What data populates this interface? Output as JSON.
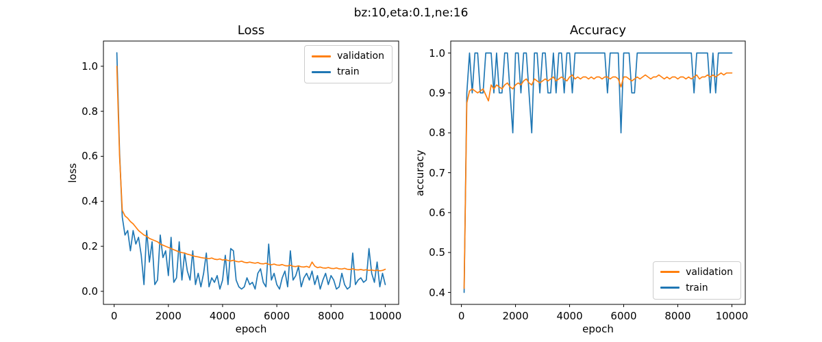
{
  "figure": {
    "suptitle": "bz:10,eta:0.1,ne:16",
    "background": "#ffffff",
    "text_color": "#000000",
    "spine_color": "#000000"
  },
  "colors": {
    "validation": "#ff7f0e",
    "train": "#1f77b4"
  },
  "chart_data": [
    {
      "id": "loss",
      "type": "line",
      "title": "Loss",
      "xlabel": "epoch",
      "ylabel": "loss",
      "grid": false,
      "xlim": [
        -395,
        10495
      ],
      "ylim": [
        -0.058,
        1.112
      ],
      "xticks": [
        0,
        2000,
        4000,
        6000,
        8000,
        10000
      ],
      "xtick_labels": [
        "0",
        "2000",
        "4000",
        "6000",
        "8000",
        "10000"
      ],
      "yticks": [
        0.0,
        0.2,
        0.4,
        0.6,
        0.8,
        1.0
      ],
      "ytick_labels": [
        "0.0",
        "0.2",
        "0.4",
        "0.6",
        "0.8",
        "1.0"
      ],
      "legend": {
        "position": "upper-right",
        "entries": [
          "validation",
          "train"
        ]
      },
      "x": [
        100,
        200,
        300,
        400,
        500,
        600,
        700,
        800,
        900,
        1000,
        1100,
        1200,
        1300,
        1400,
        1500,
        1600,
        1700,
        1800,
        1900,
        2000,
        2100,
        2200,
        2300,
        2400,
        2500,
        2600,
        2700,
        2800,
        2900,
        3000,
        3100,
        3200,
        3300,
        3400,
        3500,
        3600,
        3700,
        3800,
        3900,
        4000,
        4100,
        4200,
        4300,
        4400,
        4500,
        4600,
        4700,
        4800,
        4900,
        5000,
        5100,
        5200,
        5300,
        5400,
        5500,
        5600,
        5700,
        5800,
        5900,
        6000,
        6100,
        6200,
        6300,
        6400,
        6500,
        6600,
        6700,
        6800,
        6900,
        7000,
        7100,
        7200,
        7300,
        7400,
        7500,
        7600,
        7700,
        7800,
        7900,
        8000,
        8100,
        8200,
        8300,
        8400,
        8500,
        8600,
        8700,
        8800,
        8900,
        9000,
        9100,
        9200,
        9300,
        9400,
        9500,
        9600,
        9700,
        9800,
        9900,
        10000
      ],
      "series": [
        {
          "name": "validation",
          "color": "#ff7f0e",
          "values": [
            1.0,
            0.6,
            0.36,
            0.335,
            0.325,
            0.31,
            0.3,
            0.285,
            0.27,
            0.26,
            0.25,
            0.245,
            0.235,
            0.23,
            0.225,
            0.22,
            0.21,
            0.205,
            0.2,
            0.195,
            0.19,
            0.185,
            0.18,
            0.175,
            0.172,
            0.17,
            0.165,
            0.162,
            0.158,
            0.155,
            0.153,
            0.15,
            0.148,
            0.147,
            0.145,
            0.148,
            0.143,
            0.141,
            0.144,
            0.139,
            0.141,
            0.137,
            0.135,
            0.138,
            0.133,
            0.131,
            0.134,
            0.129,
            0.127,
            0.13,
            0.127,
            0.125,
            0.128,
            0.123,
            0.122,
            0.125,
            0.12,
            0.118,
            0.121,
            0.117,
            0.116,
            0.119,
            0.114,
            0.113,
            0.116,
            0.111,
            0.11,
            0.113,
            0.109,
            0.108,
            0.111,
            0.106,
            0.13,
            0.112,
            0.105,
            0.108,
            0.104,
            0.103,
            0.106,
            0.102,
            0.101,
            0.104,
            0.1,
            0.099,
            0.102,
            0.098,
            0.097,
            0.1,
            0.096,
            0.095,
            0.097,
            0.094,
            0.096,
            0.093,
            0.095,
            0.092,
            0.094,
            0.091,
            0.093,
            0.098
          ]
        },
        {
          "name": "train",
          "color": "#1f77b4",
          "values": [
            1.06,
            0.62,
            0.33,
            0.25,
            0.27,
            0.18,
            0.27,
            0.21,
            0.24,
            0.16,
            0.03,
            0.27,
            0.13,
            0.22,
            0.03,
            0.05,
            0.25,
            0.15,
            0.18,
            0.07,
            0.24,
            0.04,
            0.06,
            0.22,
            0.05,
            0.17,
            0.09,
            0.05,
            0.18,
            0.03,
            0.08,
            0.02,
            0.08,
            0.17,
            0.02,
            0.06,
            0.04,
            0.07,
            0.01,
            0.05,
            0.16,
            0.03,
            0.19,
            0.18,
            0.05,
            0.02,
            0.01,
            0.02,
            0.06,
            0.03,
            0.04,
            0.01,
            0.08,
            0.1,
            0.04,
            0.02,
            0.21,
            0.05,
            0.08,
            0.03,
            0.01,
            0.06,
            0.09,
            0.02,
            0.18,
            0.05,
            0.07,
            0.11,
            0.02,
            0.06,
            0.08,
            0.05,
            0.09,
            0.03,
            0.07,
            0.01,
            0.05,
            0.08,
            0.03,
            0.07,
            0.05,
            0.01,
            0.02,
            0.08,
            0.03,
            0.01,
            0.02,
            0.17,
            0.03,
            0.05,
            0.06,
            0.04,
            0.05,
            0.19,
            0.08,
            0.04,
            0.13,
            0.02,
            0.08,
            0.03
          ]
        }
      ]
    },
    {
      "id": "accuracy",
      "type": "line",
      "title": "Accuracy",
      "xlabel": "epoch",
      "ylabel": "accuracy",
      "grid": false,
      "xlim": [
        -395,
        10495
      ],
      "ylim": [
        0.37,
        1.03
      ],
      "xticks": [
        0,
        2000,
        4000,
        6000,
        8000,
        10000
      ],
      "xtick_labels": [
        "0",
        "2000",
        "4000",
        "6000",
        "8000",
        "10000"
      ],
      "yticks": [
        0.4,
        0.5,
        0.6,
        0.7,
        0.8,
        0.9,
        1.0
      ],
      "ytick_labels": [
        "0.4",
        "0.5",
        "0.6",
        "0.7",
        "0.8",
        "0.9",
        "1.0"
      ],
      "legend": {
        "position": "lower-right",
        "entries": [
          "validation",
          "train"
        ]
      },
      "x": [
        100,
        200,
        300,
        400,
        500,
        600,
        700,
        800,
        900,
        1000,
        1100,
        1200,
        1300,
        1400,
        1500,
        1600,
        1700,
        1800,
        1900,
        2000,
        2100,
        2200,
        2300,
        2400,
        2500,
        2600,
        2700,
        2800,
        2900,
        3000,
        3100,
        3200,
        3300,
        3400,
        3500,
        3600,
        3700,
        3800,
        3900,
        4000,
        4100,
        4200,
        4300,
        4400,
        4500,
        4600,
        4700,
        4800,
        4900,
        5000,
        5100,
        5200,
        5300,
        5400,
        5500,
        5600,
        5700,
        5800,
        5900,
        6000,
        6100,
        6200,
        6300,
        6400,
        6500,
        6600,
        6700,
        6800,
        6900,
        7000,
        7100,
        7200,
        7300,
        7400,
        7500,
        7600,
        7700,
        7800,
        7900,
        8000,
        8100,
        8200,
        8300,
        8400,
        8500,
        8600,
        8700,
        8800,
        8900,
        9000,
        9100,
        9200,
        9300,
        9400,
        9500,
        9600,
        9700,
        9800,
        9900,
        10000
      ],
      "series": [
        {
          "name": "validation",
          "color": "#ff7f0e",
          "values": [
            0.41,
            0.875,
            0.905,
            0.91,
            0.905,
            0.9,
            0.905,
            0.91,
            0.895,
            0.88,
            0.92,
            0.91,
            0.92,
            0.915,
            0.91,
            0.92,
            0.925,
            0.915,
            0.91,
            0.92,
            0.925,
            0.92,
            0.93,
            0.935,
            0.925,
            0.92,
            0.935,
            0.93,
            0.925,
            0.93,
            0.935,
            0.93,
            0.935,
            0.94,
            0.93,
            0.935,
            0.94,
            0.935,
            0.93,
            0.94,
            0.945,
            0.935,
            0.94,
            0.935,
            0.94,
            0.94,
            0.935,
            0.94,
            0.935,
            0.94,
            0.94,
            0.935,
            0.94,
            0.94,
            0.935,
            0.94,
            0.94,
            0.935,
            0.915,
            0.94,
            0.94,
            0.935,
            0.93,
            0.935,
            0.94,
            0.935,
            0.94,
            0.945,
            0.94,
            0.935,
            0.94,
            0.94,
            0.945,
            0.94,
            0.935,
            0.94,
            0.935,
            0.94,
            0.94,
            0.935,
            0.94,
            0.94,
            0.935,
            0.94,
            0.935,
            0.94,
            0.945,
            0.935,
            0.94,
            0.94,
            0.945,
            0.94,
            0.945,
            0.94,
            0.945,
            0.95,
            0.945,
            0.95,
            0.95,
            0.95
          ]
        },
        {
          "name": "train",
          "color": "#1f77b4",
          "values": [
            0.4,
            0.9,
            1.0,
            0.9,
            1.0,
            1.0,
            0.9,
            0.9,
            1.0,
            1.0,
            1.0,
            0.9,
            1.0,
            0.9,
            0.9,
            1.0,
            1.0,
            0.9,
            0.8,
            1.0,
            1.0,
            0.9,
            1.0,
            1.0,
            0.9,
            0.8,
            1.0,
            1.0,
            0.9,
            1.0,
            1.0,
            0.9,
            0.9,
            1.0,
            0.9,
            1.0,
            1.0,
            0.9,
            1.0,
            1.0,
            0.9,
            1.0,
            1.0,
            1.0,
            1.0,
            1.0,
            1.0,
            1.0,
            1.0,
            1.0,
            1.0,
            1.0,
            1.0,
            0.9,
            1.0,
            1.0,
            1.0,
            1.0,
            0.8,
            1.0,
            1.0,
            1.0,
            0.9,
            0.9,
            1.0,
            1.0,
            1.0,
            1.0,
            1.0,
            1.0,
            1.0,
            1.0,
            1.0,
            1.0,
            1.0,
            1.0,
            1.0,
            1.0,
            1.0,
            1.0,
            1.0,
            1.0,
            1.0,
            1.0,
            1.0,
            0.9,
            1.0,
            1.0,
            1.0,
            1.0,
            1.0,
            0.9,
            1.0,
            0.9,
            1.0,
            1.0,
            1.0,
            1.0,
            1.0,
            1.0
          ]
        }
      ]
    }
  ]
}
